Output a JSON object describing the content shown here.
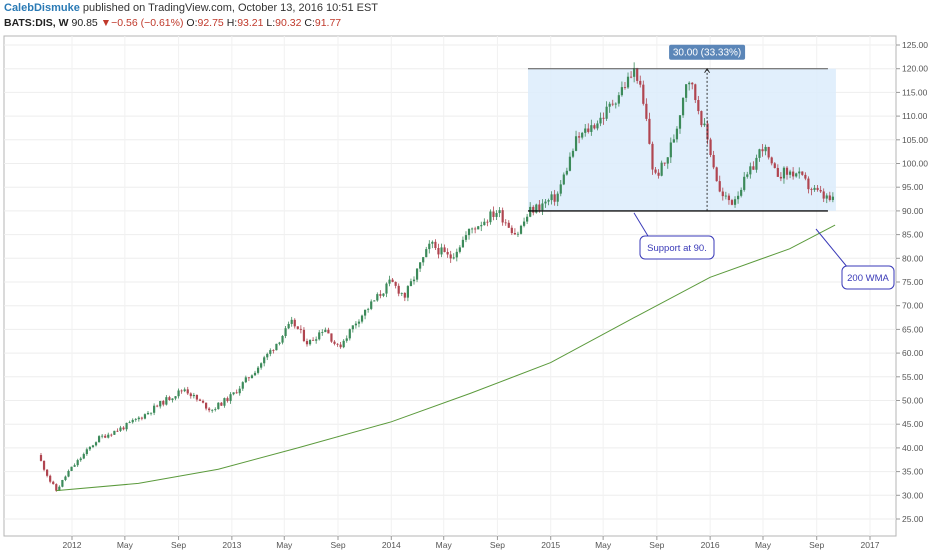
{
  "header": {
    "author": "CalebDismuke",
    "published": "published on TradingView.com, October 13, 2016 10:51 EST",
    "symbol": "BATS:DIS, W",
    "last": "90.85",
    "change": "−0.56 (−0.61%)",
    "open_label": "O:",
    "open": "92.75",
    "high_label": "H:",
    "high": "93.21",
    "low_label": "L:",
    "low": "90.32",
    "close_label": "C:",
    "close": "91.77"
  },
  "chart_data": {
    "type": "candlestick",
    "title": "",
    "xlabel": "",
    "ylabel": "",
    "ylim": [
      22.5,
      126
    ],
    "x_ticks": [
      "2012",
      "May",
      "Sep",
      "2013",
      "May",
      "Sep",
      "2014",
      "May",
      "Sep",
      "2015",
      "May",
      "Sep",
      "2016",
      "May",
      "Sep",
      "2017"
    ],
    "y_ticks": [
      "25.00",
      "30.00",
      "35.00",
      "40.00",
      "45.00",
      "50.00",
      "55.00",
      "60.00",
      "65.00",
      "70.00",
      "75.00",
      "80.00",
      "85.00",
      "90.00",
      "95.00",
      "100.00",
      "105.00",
      "110.00",
      "115.00",
      "120.00",
      "125.00"
    ],
    "price_path": [
      [
        "2011-10-15",
        38.5
      ],
      [
        "2011-11-12",
        33.0
      ],
      [
        "2011-11-26",
        31.0
      ],
      [
        "2011-12-24",
        35.0
      ],
      [
        "2012-03-01",
        42.0
      ],
      [
        "2012-05-01",
        44.5
      ],
      [
        "2012-06-15",
        47.0
      ],
      [
        "2012-08-01",
        50.0
      ],
      [
        "2012-09-15",
        52.5
      ],
      [
        "2012-10-15",
        50.0
      ],
      [
        "2012-11-15",
        48.0
      ],
      [
        "2013-01-01",
        51.0
      ],
      [
        "2013-03-01",
        57.0
      ],
      [
        "2013-05-20",
        66.5
      ],
      [
        "2013-06-25",
        62.0
      ],
      [
        "2013-08-01",
        65.5
      ],
      [
        "2013-09-01",
        61.0
      ],
      [
        "2013-10-15",
        67.0
      ],
      [
        "2013-12-31",
        75.0
      ],
      [
        "2014-02-01",
        72.0
      ],
      [
        "2014-04-01",
        83.0
      ],
      [
        "2014-05-15",
        80.0
      ],
      [
        "2014-07-01",
        86.0
      ],
      [
        "2014-09-01",
        90.0
      ],
      [
        "2014-10-15",
        85.0
      ],
      [
        "2014-11-15",
        90.0
      ],
      [
        "2015-01-15",
        93.0
      ],
      [
        "2015-03-01",
        105.0
      ],
      [
        "2015-05-01",
        110.0
      ],
      [
        "2015-07-15",
        120.0
      ],
      [
        "2015-08-10",
        108.0
      ],
      [
        "2015-08-25",
        97.0
      ],
      [
        "2015-09-20",
        100.0
      ],
      [
        "2015-10-15",
        107.0
      ],
      [
        "2015-11-10",
        119.0
      ],
      [
        "2015-12-01",
        113.0
      ],
      [
        "2016-01-01",
        103.0
      ],
      [
        "2016-01-25",
        93.0
      ],
      [
        "2016-02-20",
        92.0
      ],
      [
        "2016-04-01",
        98.0
      ],
      [
        "2016-05-01",
        104.0
      ],
      [
        "2016-05-25",
        98.0
      ],
      [
        "2016-07-15",
        98.0
      ],
      [
        "2016-08-15",
        95.0
      ],
      [
        "2016-09-15",
        93.0
      ],
      [
        "2016-10-13",
        91.77
      ]
    ],
    "wma_label": "200 WMA",
    "wma_path": [
      [
        "2011-11-26",
        31.0
      ],
      [
        "2012-06-01",
        32.5
      ],
      [
        "2012-12-01",
        35.5
      ],
      [
        "2013-06-01",
        40.0
      ],
      [
        "2014-01-01",
        45.5
      ],
      [
        "2014-07-01",
        51.5
      ],
      [
        "2015-01-01",
        58.0
      ],
      [
        "2015-07-01",
        67.0
      ],
      [
        "2016-01-01",
        76.0
      ],
      [
        "2016-07-01",
        82.0
      ],
      [
        "2016-10-13",
        87.0
      ]
    ],
    "support_level": 90.0,
    "resistance_level": 120.0,
    "measure_box": {
      "from": "2014-11-10",
      "to": "2016-10-15",
      "low": 90,
      "high": 120
    },
    "measure_label": "30.00 (33.33%)",
    "support_label": "Support at 90.",
    "colors": {
      "up": "#3c8a5a",
      "down": "#b04550",
      "wma": "#5b9a3c",
      "box_fill": "#dcecfc",
      "callout_border": "#3a3ab8",
      "measure_bg": "#5b86b8"
    }
  }
}
